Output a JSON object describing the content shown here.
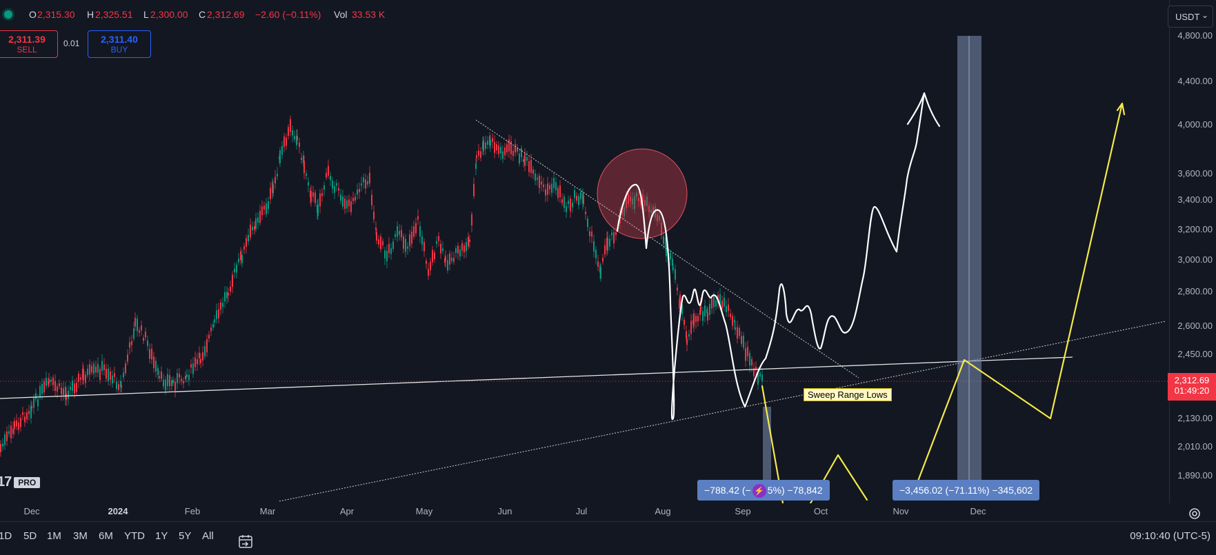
{
  "header": {
    "open_label": "O",
    "open_value": "2,315.30",
    "high_label": "H",
    "high_value": "2,325.51",
    "low_label": "L",
    "low_value": "2,300.00",
    "close_label": "C",
    "close_value": "2,312.69",
    "change": "−2.60 (−0.11%)",
    "vol_label": "Vol",
    "vol_value": "33.53 K"
  },
  "trade": {
    "sell_price": "2,311.39",
    "sell_label": "SELL",
    "buy_price": "2,311.40",
    "buy_label": "BUY",
    "spread": "0.01"
  },
  "currency": {
    "value": "USDT",
    "chevron_icon": "chevron-down-icon"
  },
  "price_axis": {
    "ticks": [
      "4,800.00",
      "4,400.00",
      "4,000.00",
      "3,600.00",
      "3,400.00",
      "3,200.00",
      "3,000.00",
      "2,800.00",
      "2,600.00",
      "2,450.00",
      "2,130.00",
      "2,010.00",
      "1,890.00"
    ],
    "last_price": "2,312.69",
    "countdown": "01:49:20"
  },
  "time_axis": {
    "ticks": [
      "Dec",
      "2024",
      "Feb",
      "Mar",
      "Apr",
      "May",
      "Jun",
      "Jul",
      "Aug",
      "Sep",
      "Oct",
      "Nov",
      "Dec"
    ]
  },
  "annotations": {
    "sweep_label": "Sweep Range Lows",
    "measure_left": "−788.42 (−",
    "measure_left_tail": "5%) −78,842",
    "measure_right": "−3,456.02 (−71.11%) −345,602"
  },
  "logo": {
    "text": "17",
    "badge": "PRO"
  },
  "bottom": {
    "ranges": [
      "1D",
      "5D",
      "1M",
      "3M",
      "6M",
      "YTD",
      "1Y",
      "5Y",
      "All"
    ],
    "clock": "09:10:40 (UTC-5)"
  },
  "colors": {
    "background": "#131722",
    "up": "#089981",
    "down": "#f23645",
    "drawing_white": "#ffffff",
    "drawing_yellow": "#f5e94a",
    "measure": "#5b7fc2"
  }
}
